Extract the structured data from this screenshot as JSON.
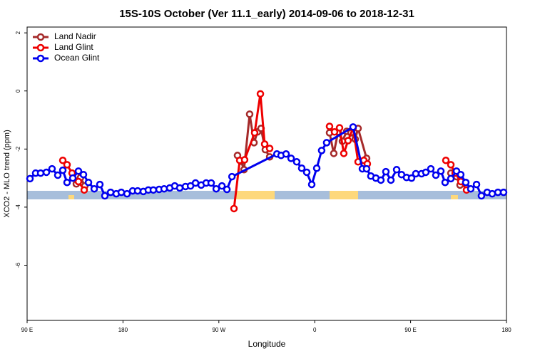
{
  "chart_data": {
    "type": "line",
    "title": "15S-10S October (Ver 11.1_early)   2014-09-06 to 2018-12-31",
    "xlabel": "Longitude",
    "ylabel": "XCO2 - MLO trend (ppm)",
    "xlim": [
      90,
      540
    ],
    "xticks": [
      {
        "value": 90,
        "label": "90 E"
      },
      180,
      {
        "value": 270,
        "label": "90 W"
      },
      {
        "value": 360,
        "label": "0"
      },
      {
        "value": 450,
        "label": "90 E"
      },
      {
        "value": 540,
        "label": "180"
      }
    ],
    "ylim": [
      -7.9,
      2.2
    ],
    "yticks": [
      2,
      0,
      -2,
      -4,
      -6
    ],
    "legend": "top-left",
    "series": [
      {
        "name": "Land Nadir",
        "color": "#a52a2a",
        "x": [
          136.2,
          140.2,
          144.2,
          null,
          287.5,
          290.9,
          293.6,
          298.9,
          303.0,
          306.3,
          309.6,
          313.6,
          317.7,
          null,
          373.9,
          377.9,
          381.9,
          386.0,
          390.0,
          394.0,
          398.0,
          400.7,
          408.7,
          null,
          487.8,
          493.1,
          496.4
        ],
        "values": [
          -3.2,
          -2.98,
          -3.27,
          null,
          -2.22,
          -2.42,
          -2.71,
          -0.8,
          -1.78,
          -1.41,
          -1.29,
          -2.02,
          -2.27,
          null,
          -1.44,
          -2.15,
          -1.41,
          -1.73,
          -1.39,
          -1.44,
          -1.66,
          -1.29,
          -2.32,
          null,
          -2.83,
          -2.95,
          -3.24
        ]
      },
      {
        "name": "Land Glint",
        "color": "#ee0000",
        "x": [
          123.5,
          127.5,
          132.2,
          138.2,
          143.6,
          null,
          284.2,
          289.6,
          294.2,
          303.6,
          309.0,
          313.0,
          317.7,
          null,
          373.9,
          378.6,
          383.3,
          387.3,
          391.3,
          396.0,
          400.7,
          406.1,
          409.4,
          null,
          483.1,
          487.8,
          491.8,
          497.2,
          502.5
        ],
        "values": [
          -2.39,
          -2.54,
          -2.83,
          -3.12,
          -3.41,
          null,
          -4.05,
          -2.39,
          -2.37,
          -1.44,
          -0.1,
          -1.83,
          -1.98,
          null,
          -1.22,
          -1.41,
          -1.27,
          -2.15,
          -1.71,
          -1.27,
          -2.44,
          -2.39,
          -2.51,
          null,
          -2.39,
          -2.54,
          -2.83,
          -3.12,
          -3.41
        ]
      },
      {
        "name": "Ocean Glint",
        "color": "#0000ee",
        "x": [
          92.7,
          98.0,
          102.7,
          108.1,
          113.4,
          118.8,
          123.5,
          127.5,
          132.9,
          138.2,
          142.9,
          147.6,
          153.0,
          158.3,
          163.0,
          168.4,
          173.7,
          178.4,
          183.8,
          189.1,
          193.8,
          199.1,
          203.8,
          208.5,
          213.9,
          218.6,
          223.9,
          228.6,
          233.3,
          238.7,
          243.4,
          248.1,
          253.4,
          258.1,
          262.8,
          267.5,
          272.9,
          277.6,
          282.3,
          324.5,
          328.4,
          333.1,
          337.8,
          343.1,
          347.8,
          352.5,
          357.2,
          361.9,
          366.5,
          371.2,
          396.0,
          404.7,
          408.7,
          412.7,
          417.4,
          422.1,
          426.8,
          431.5,
          436.9,
          441.5,
          446.2,
          450.9,
          454.9,
          460.3,
          464.3,
          469.0,
          473.7,
          478.4,
          482.4,
          487.8,
          493.1,
          497.1,
          501.8,
          506.5,
          511.9,
          516.5,
          521.9,
          526.6,
          532.0,
          537.3
        ],
        "values": [
          -3.02,
          -2.83,
          -2.83,
          -2.8,
          -2.68,
          -2.9,
          -2.73,
          -3.15,
          -3.0,
          -2.76,
          -2.88,
          -3.15,
          -3.37,
          -3.22,
          -3.61,
          -3.49,
          -3.54,
          -3.49,
          -3.54,
          -3.44,
          -3.44,
          -3.46,
          -3.41,
          -3.41,
          -3.39,
          -3.37,
          -3.34,
          -3.27,
          -3.34,
          -3.29,
          -3.27,
          -3.17,
          -3.24,
          -3.17,
          -3.17,
          -3.37,
          -3.27,
          -3.39,
          -2.95,
          -2.17,
          -2.22,
          -2.17,
          -2.32,
          -2.44,
          -2.66,
          -2.8,
          -3.22,
          -2.66,
          -2.05,
          -1.78,
          -1.24,
          -2.68,
          -2.68,
          -2.93,
          -3.0,
          -3.07,
          -2.78,
          -3.07,
          -2.71,
          -2.88,
          -2.98,
          -3.0,
          -2.85,
          -2.85,
          -2.8,
          -2.68,
          -2.9,
          -2.76,
          -3.15,
          -3.02,
          -2.76,
          -2.88,
          -3.15,
          -3.37,
          -3.22,
          -3.61,
          -3.49,
          -3.54,
          -3.49,
          -3.49
        ]
      }
    ]
  }
}
